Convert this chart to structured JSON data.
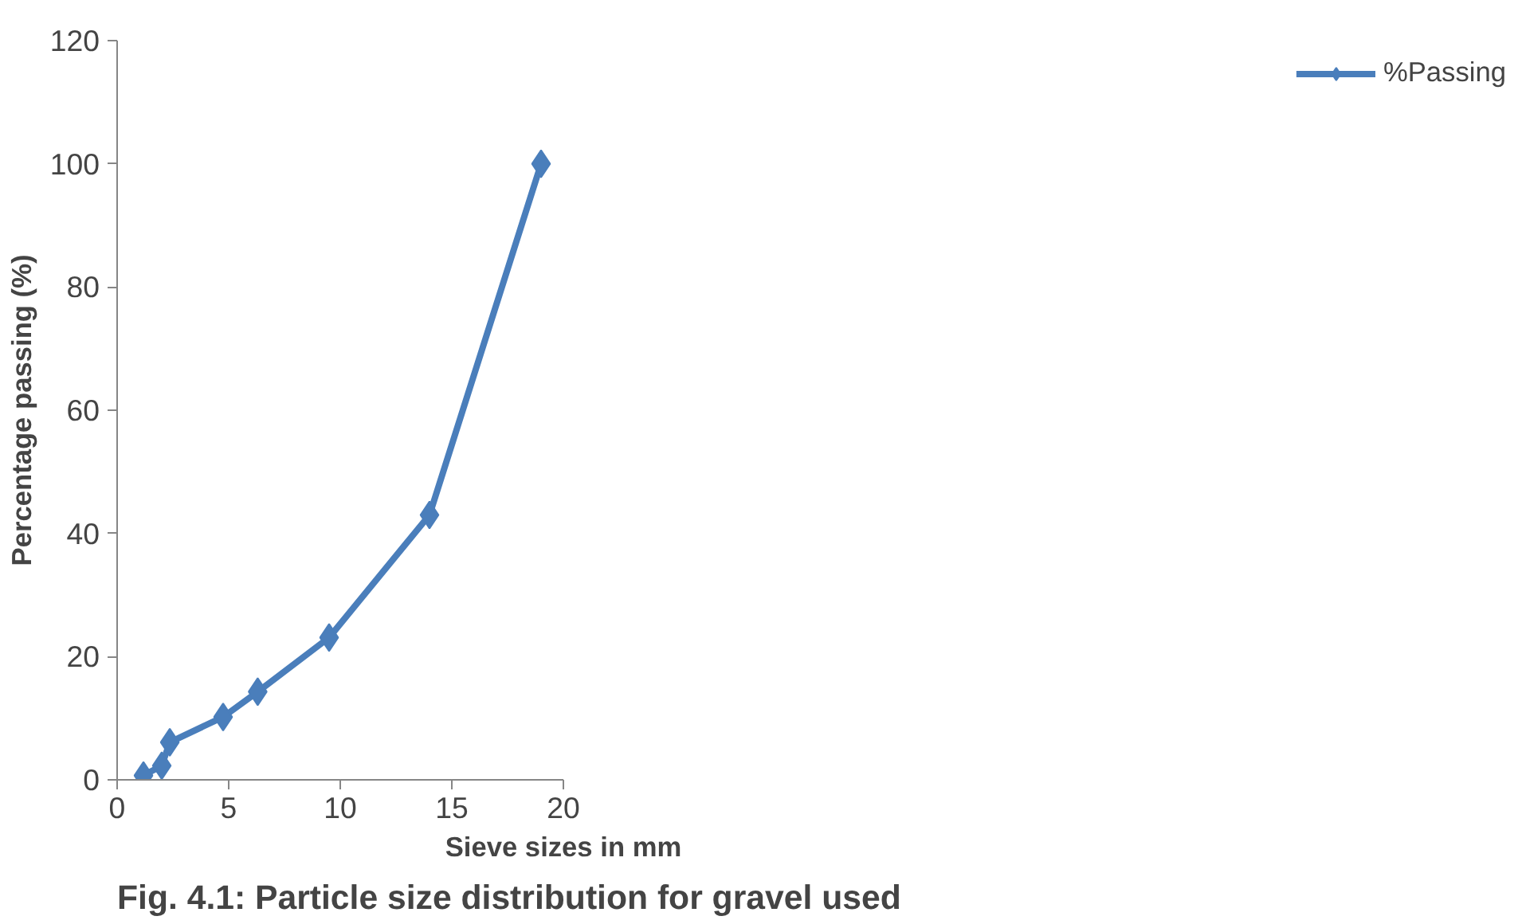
{
  "chart_data": {
    "type": "line",
    "title": "Fig. 4.1: Particle size distribution for gravel used",
    "xlabel": "Sieve sizes in mm",
    "ylabel": "Percentage passing (%)",
    "series": [
      {
        "name": "%Passing",
        "color": "#4a7ebb",
        "x": [
          1.18,
          2,
          2.36,
          4.75,
          6.3,
          9.5,
          14,
          19
        ],
        "values": [
          0.7,
          2.3,
          6.1,
          10.2,
          14.3,
          23.1,
          43,
          100
        ]
      }
    ],
    "xlim": [
      0,
      20
    ],
    "xticks": [
      0,
      5,
      10,
      15,
      20
    ],
    "ylim": [
      0,
      120
    ],
    "yticks": [
      0,
      20,
      40,
      60,
      80,
      100,
      120
    ],
    "grid": false,
    "legend": "right",
    "marker": "diamond",
    "line_style": "solid"
  }
}
